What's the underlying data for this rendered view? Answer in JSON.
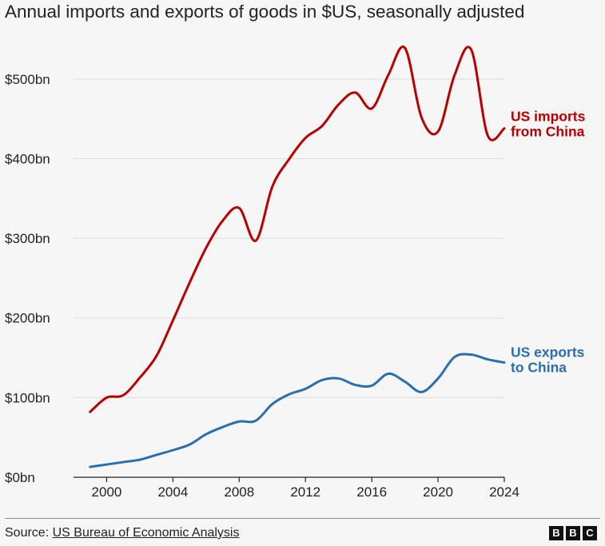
{
  "title": "Annual imports and exports of goods in $US, seasonally adjusted",
  "source": {
    "prefix": "Source: ",
    "name": "US Bureau of Economic Analysis"
  },
  "logo": [
    "B",
    "B",
    "C"
  ],
  "colors": {
    "imports": "#b80000",
    "exports": "#2a6eaf",
    "grid": "#dcdcdc",
    "axis": "#222222"
  },
  "chart_data": {
    "type": "line",
    "title": "Annual imports and exports of goods in $US, seasonally adjusted",
    "xlabel": "",
    "ylabel": "",
    "xlim": [
      1998,
      2024
    ],
    "ylim": [
      0,
      550
    ],
    "x_ticks": [
      2000,
      2004,
      2008,
      2012,
      2016,
      2020,
      2024
    ],
    "y_ticks": [
      0,
      100,
      200,
      300,
      400,
      500
    ],
    "y_tick_labels": [
      "$0bn",
      "$100bn",
      "$200bn",
      "$300bn",
      "$400bn",
      "$500bn"
    ],
    "grid": true,
    "legend": "inline-right",
    "series": [
      {
        "name": "US imports from China",
        "label_lines": [
          "US imports",
          "from China"
        ],
        "color": "#b80000",
        "x": [
          1999,
          2000,
          2001,
          2002,
          2003,
          2004,
          2005,
          2006,
          2007,
          2008,
          2009,
          2010,
          2011,
          2012,
          2013,
          2014,
          2015,
          2016,
          2017,
          2018,
          2019,
          2020,
          2021,
          2022,
          2023,
          2024
        ],
        "values": [
          82,
          100,
          103,
          125,
          152,
          197,
          244,
          288,
          322,
          338,
          297,
          365,
          399,
          426,
          441,
          468,
          483,
          463,
          505,
          539,
          452,
          434,
          505,
          537,
          429,
          438
        ]
      },
      {
        "name": "US exports to China",
        "label_lines": [
          "US exports",
          "to China"
        ],
        "color": "#2a6eaf",
        "x": [
          1999,
          2000,
          2001,
          2002,
          2003,
          2004,
          2005,
          2006,
          2007,
          2008,
          2009,
          2010,
          2011,
          2012,
          2013,
          2014,
          2015,
          2016,
          2017,
          2018,
          2019,
          2020,
          2021,
          2022,
          2023,
          2024
        ],
        "values": [
          13,
          16,
          19,
          22,
          28,
          34,
          41,
          54,
          63,
          70,
          71,
          92,
          104,
          111,
          122,
          124,
          116,
          115,
          130,
          120,
          107,
          124,
          151,
          154,
          148,
          144
        ]
      }
    ]
  }
}
